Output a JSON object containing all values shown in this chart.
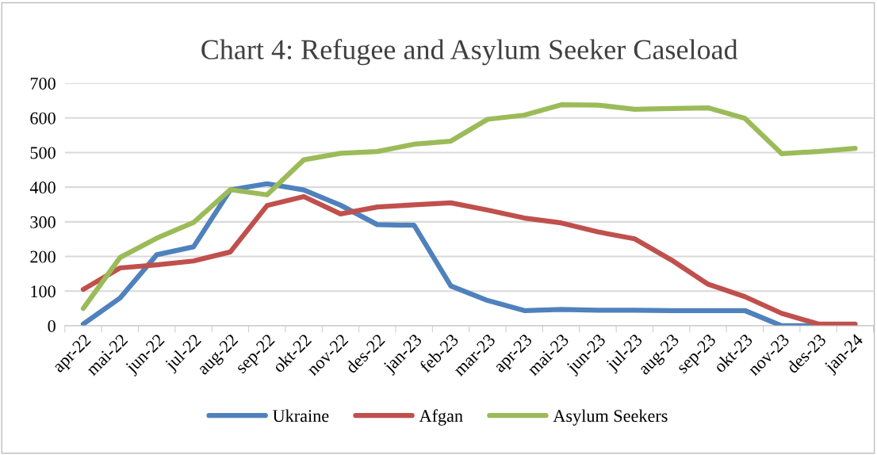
{
  "chart_data": {
    "type": "line",
    "title": "Chart 4: Refugee and Asylum Seeker Caseload",
    "categories": [
      "apr-22",
      "mai-22",
      "jun-22",
      "jul-22",
      "aug-22",
      "sep-22",
      "okt-22",
      "nov-22",
      "des-22",
      "jan-23",
      "feb-23",
      "mar-23",
      "apr-23",
      "mai-23",
      "jun-23",
      "jul-23",
      "aug-23",
      "sep-23",
      "okt-23",
      "nov-23",
      "des-23",
      "jan-24"
    ],
    "series": [
      {
        "name": "Ukraine",
        "color": "#4f81bd",
        "values": [
          5,
          80,
          205,
          228,
          392,
          410,
          392,
          348,
          292,
          290,
          115,
          73,
          44,
          47,
          45,
          45,
          44,
          44,
          44,
          0,
          0,
          0
        ]
      },
      {
        "name": "Afgan",
        "color": "#c0504d",
        "values": [
          105,
          167,
          176,
          187,
          213,
          347,
          373,
          323,
          343,
          349,
          355,
          334,
          311,
          297,
          271,
          251,
          190,
          120,
          84,
          36,
          5,
          5
        ]
      },
      {
        "name": "Asylum Seekers",
        "color": "#9bbb59",
        "values": [
          50,
          197,
          253,
          298,
          393,
          378,
          479,
          498,
          503,
          524,
          533,
          596,
          608,
          638,
          637,
          625,
          627,
          629,
          599,
          497,
          503,
          512
        ]
      }
    ],
    "ylim": [
      0,
      700
    ],
    "yticks": [
      0,
      100,
      200,
      300,
      400,
      500,
      600,
      700
    ],
    "grid": "y",
    "legend": "bottom",
    "marker": "none",
    "line_style": "solid"
  }
}
